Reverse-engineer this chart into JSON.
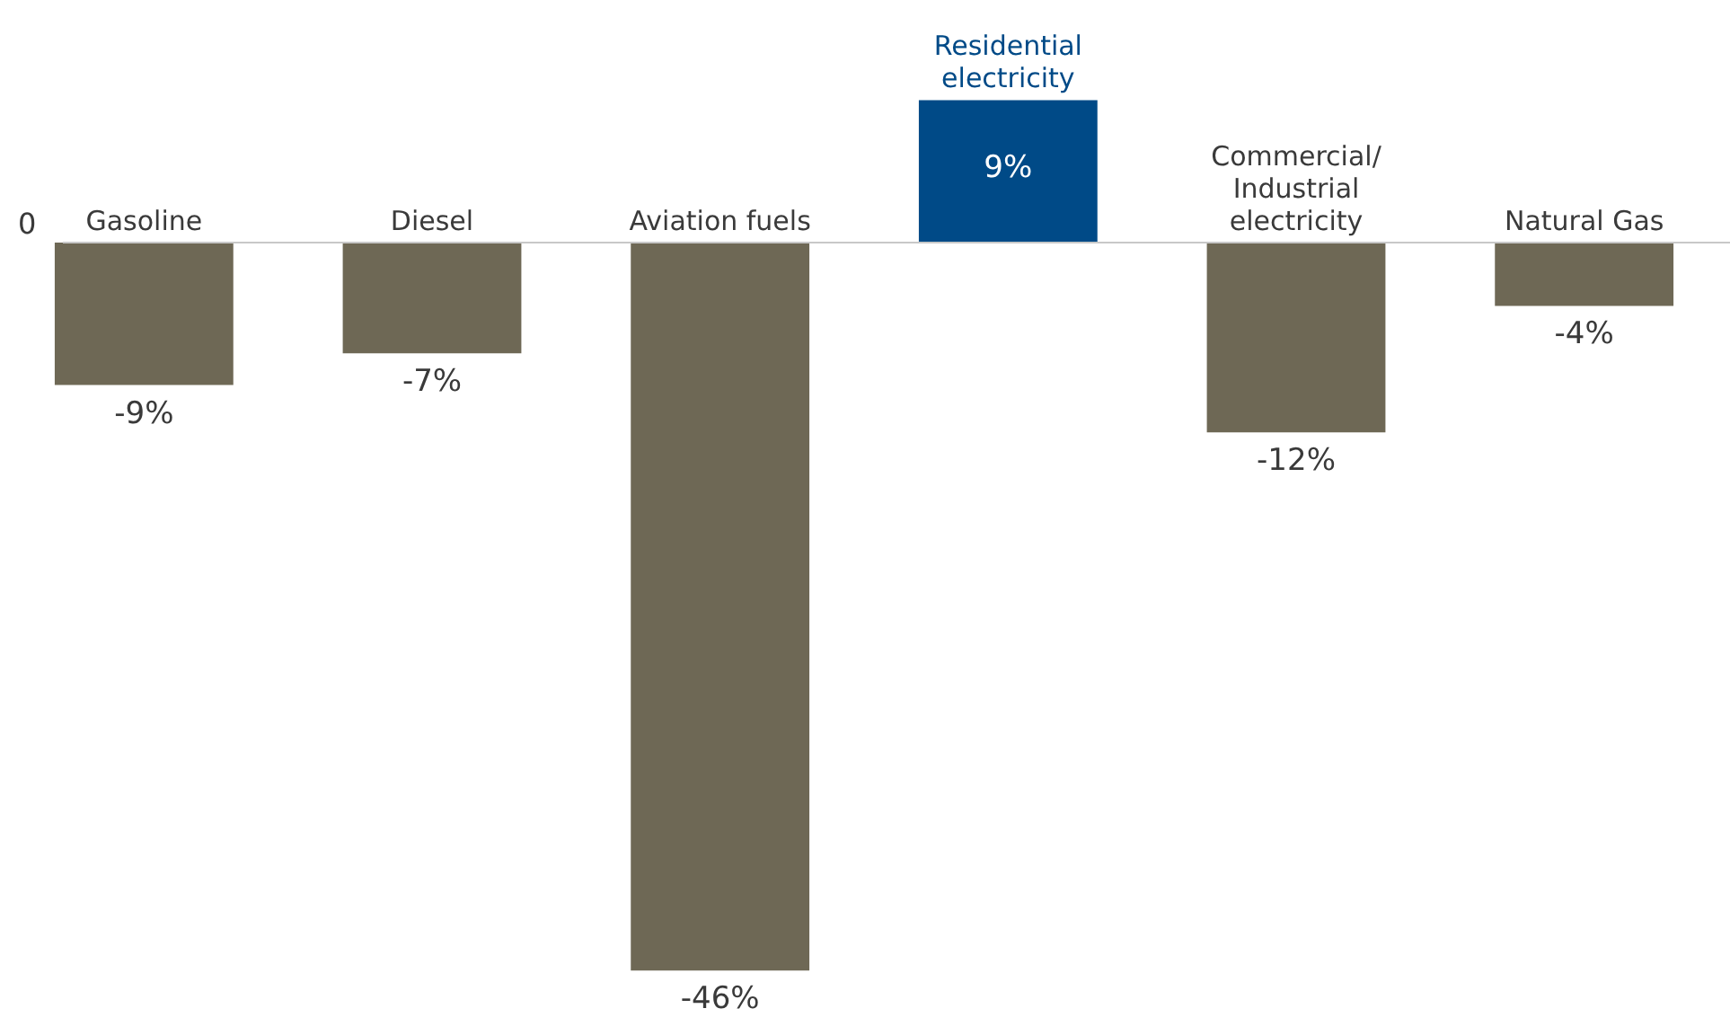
{
  "chart_data": {
    "type": "bar",
    "categories": [
      "Gasoline",
      "Diesel",
      "Aviation fuels",
      "Residential electricity",
      "Commercial/ Industrial electricity",
      "Natural Gas"
    ],
    "values": [
      -9,
      -7,
      -46,
      9,
      -12,
      -4
    ],
    "value_labels": [
      "-9%",
      "-7%",
      "-46%",
      "9%",
      "-12%",
      "-4%"
    ],
    "colors": [
      "#6e6855",
      "#6e6855",
      "#6e6855",
      "#004a87",
      "#6e6855",
      "#6e6855"
    ],
    "annotations": [
      "0"
    ]
  }
}
